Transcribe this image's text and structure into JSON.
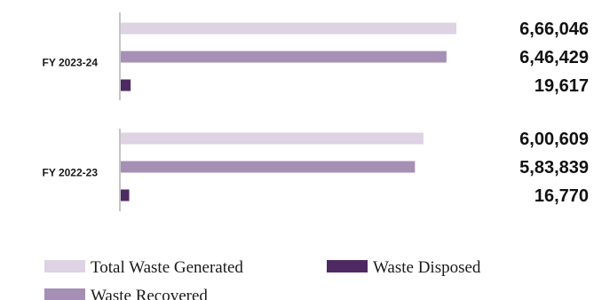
{
  "chart_data": {
    "type": "bar",
    "orientation": "horizontal",
    "categories": [
      "FY 2023-24",
      "FY 2022-23"
    ],
    "series": [
      {
        "name": "Total Waste Generated",
        "color": "#ddd3e3",
        "values": [
          666046,
          600609
        ],
        "labels": [
          "6,66,046",
          "6,00,609"
        ]
      },
      {
        "name": "Waste Recovered",
        "color": "#a68fb5",
        "values": [
          646429,
          583839
        ],
        "labels": [
          "6,46,429",
          "5,83,839"
        ]
      },
      {
        "name": "Waste Disposed",
        "color": "#4e2a63",
        "values": [
          19617,
          16770
        ],
        "labels": [
          "19,617",
          "16,770"
        ]
      }
    ],
    "xlim": [
      0,
      666046
    ],
    "grid": false,
    "legend": {
      "placement": "bottom",
      "order": [
        "Total Waste Generated",
        "Waste Disposed",
        "Waste Recovered"
      ]
    }
  }
}
